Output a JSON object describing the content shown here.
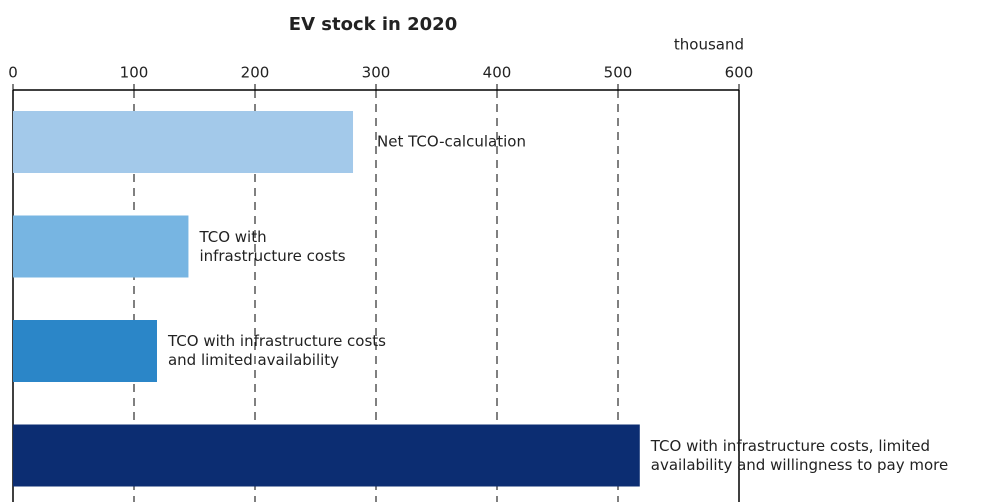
{
  "chart_data": {
    "type": "bar",
    "orientation": "horizontal",
    "title": "EV stock in 2020",
    "unit_label": "thousand",
    "categories": [
      "Net TCO-calculation",
      "TCO with\ninfrastructure costs",
      "TCO with infrastructure costs\nand limited availability",
      "TCO with infrastructure costs, limited\navailability and willingness to pay more"
    ],
    "values": [
      281,
      145,
      119,
      518
    ],
    "colors": [
      "#a3c9ea",
      "#77b5e2",
      "#2b86c8",
      "#0c2d72"
    ],
    "xlim": [
      0,
      600
    ],
    "xticks": [
      0,
      100,
      200,
      300,
      400,
      500,
      600
    ],
    "grid": true
  }
}
